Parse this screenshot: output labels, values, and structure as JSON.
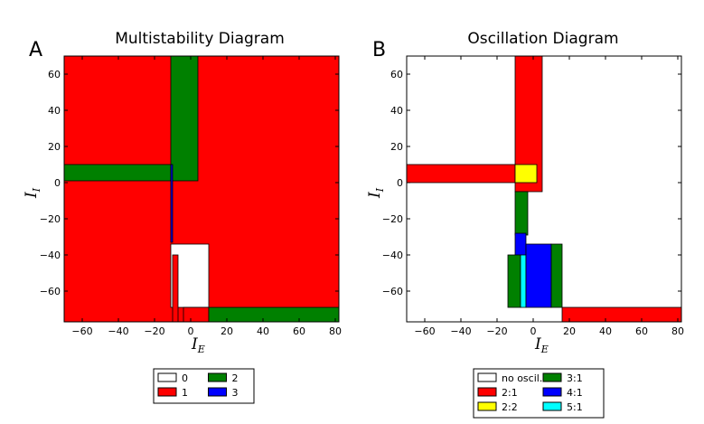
{
  "chart_data": [
    {
      "type": "heatmap",
      "panel_label": "A",
      "title": "Multistability Diagram",
      "xlabel": {
        "symbol": "I",
        "subscript": "E"
      },
      "ylabel": {
        "symbol": "I",
        "subscript": "I"
      },
      "xlim": [
        -70,
        82
      ],
      "ylim": [
        -77,
        70
      ],
      "xticks": [
        -60,
        -40,
        -20,
        0,
        20,
        40,
        60,
        80
      ],
      "yticks": [
        60,
        40,
        20,
        0,
        -20,
        -40,
        -60
      ],
      "xtick_labels": [
        "−60",
        "−40",
        "−20",
        "0",
        "20",
        "40",
        "60",
        "80"
      ],
      "ytick_labels": [
        "60",
        "40",
        "20",
        "0",
        "−20",
        "−40",
        "−60"
      ],
      "regions": [
        {
          "label": "1",
          "x": [
            -70,
            82
          ],
          "y": [
            -77,
            70
          ]
        },
        {
          "label": "2",
          "x": [
            -70,
            -10
          ],
          "y": [
            1,
            10
          ]
        },
        {
          "label": "2",
          "x": [
            -11,
            4
          ],
          "y": [
            1,
            70
          ]
        },
        {
          "label": "0",
          "x": [
            -11,
            10
          ],
          "y": [
            -69,
            -34
          ]
        },
        {
          "label": "1",
          "x": [
            -10,
            -7
          ],
          "y": [
            -77,
            -40
          ]
        },
        {
          "label": "1",
          "x": [
            -4,
            10
          ],
          "y": [
            -77,
            -69
          ]
        },
        {
          "label": "3",
          "x": [
            -11,
            -10
          ],
          "y": [
            -33,
            10
          ]
        },
        {
          "label": "2",
          "x": [
            10,
            82
          ],
          "y": [
            -77,
            -69
          ]
        }
      ],
      "legend": [
        {
          "label": "0",
          "color": "#ffffff"
        },
        {
          "label": "2",
          "color": "#008000"
        },
        {
          "label": "1",
          "color": "#ff0000"
        },
        {
          "label": "3",
          "color": "#0000ff"
        }
      ]
    },
    {
      "type": "heatmap",
      "panel_label": "B",
      "title": "Oscillation Diagram",
      "xlabel": {
        "symbol": "I",
        "subscript": "E"
      },
      "ylabel": {
        "symbol": "I",
        "subscript": "I"
      },
      "xlim": [
        -70,
        82
      ],
      "ylim": [
        -77,
        70
      ],
      "xticks": [
        -60,
        -40,
        -20,
        0,
        20,
        40,
        60,
        80
      ],
      "yticks": [
        60,
        40,
        20,
        0,
        -20,
        -40,
        -60
      ],
      "xtick_labels": [
        "−60",
        "−40",
        "−20",
        "0",
        "20",
        "40",
        "60",
        "80"
      ],
      "ytick_labels": [
        "60",
        "40",
        "20",
        "0",
        "−20",
        "−40",
        "−60"
      ],
      "regions": [
        {
          "label": "no oscil.",
          "x": [
            -70,
            82
          ],
          "y": [
            -77,
            70
          ]
        },
        {
          "label": "2:1",
          "x": [
            -10,
            5
          ],
          "y": [
            -5,
            70
          ]
        },
        {
          "label": "2:1",
          "x": [
            -70,
            -10
          ],
          "y": [
            0,
            10
          ]
        },
        {
          "label": "2:2",
          "x": [
            -10,
            2
          ],
          "y": [
            0,
            10
          ]
        },
        {
          "label": "3:1",
          "x": [
            -10,
            -3
          ],
          "y": [
            -29,
            -5
          ]
        },
        {
          "label": "4:1",
          "x": [
            -10,
            -4
          ],
          "y": [
            -41,
            -28
          ]
        },
        {
          "label": "3:1",
          "x": [
            -14,
            -7
          ],
          "y": [
            -69,
            -40
          ]
        },
        {
          "label": "5:1",
          "x": [
            -7,
            -4
          ],
          "y": [
            -69,
            -40
          ]
        },
        {
          "label": "4:1",
          "x": [
            -4,
            10
          ],
          "y": [
            -69,
            -34
          ]
        },
        {
          "label": "3:1",
          "x": [
            10,
            16
          ],
          "y": [
            -69,
            -34
          ]
        },
        {
          "label": "2:1",
          "x": [
            16,
            82
          ],
          "y": [
            -77,
            -69
          ]
        }
      ],
      "legend": [
        {
          "label": "no oscil.",
          "color": "#ffffff"
        },
        {
          "label": "3:1",
          "color": "#008000"
        },
        {
          "label": "2:1",
          "color": "#ff0000"
        },
        {
          "label": "4:1",
          "color": "#0000ff"
        },
        {
          "label": "2:2",
          "color": "#ffff00"
        },
        {
          "label": "5:1",
          "color": "#00ffff"
        }
      ]
    }
  ]
}
